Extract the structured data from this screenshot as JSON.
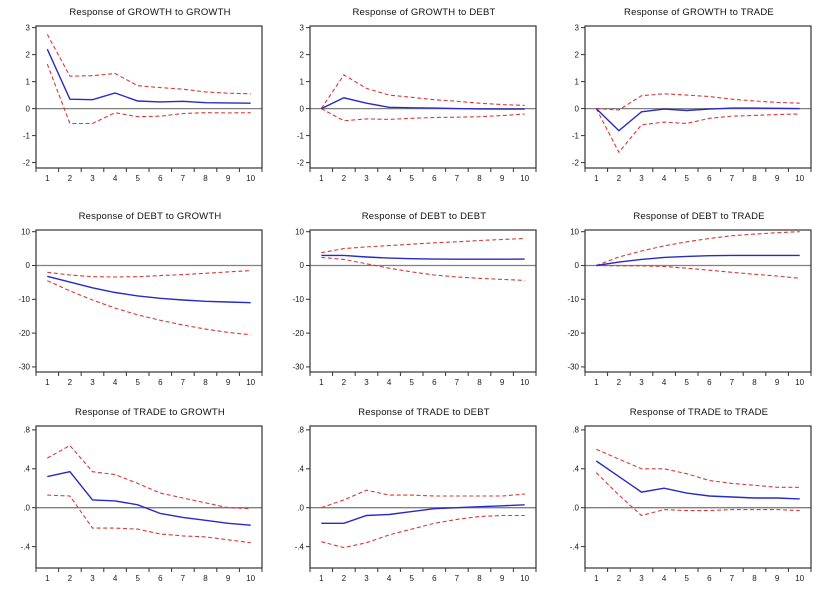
{
  "colors": {
    "response_line": "#2929c8",
    "confidence_band": "#d63b3b",
    "zero_line": "#808080",
    "frame": "#333333",
    "tick": "#333333",
    "text": "#1a1a1a"
  },
  "x_axis": {
    "range": [
      0.5,
      10.5
    ],
    "tick_boundaries": [
      0.5,
      1.5,
      2.5,
      3.5,
      4.5,
      5.5,
      6.5,
      7.5,
      8.5,
      9.5,
      10.5
    ],
    "labels": [
      "1",
      "2",
      "3",
      "4",
      "5",
      "6",
      "7",
      "8",
      "9",
      "10"
    ]
  },
  "chart_data": [
    {
      "type": "line",
      "title": "Response of GROWTH to GROWTH",
      "x": [
        1,
        2,
        3,
        4,
        5,
        6,
        7,
        8,
        9,
        10
      ],
      "ylim": [
        -2.2,
        3.06
      ],
      "ytick_values": [
        3,
        2,
        1,
        0,
        -1,
        -2
      ],
      "ytick_labels": [
        "3",
        "2",
        "1",
        "0",
        "-1",
        "-2"
      ],
      "series": [
        {
          "name": "response",
          "style": "solid",
          "values": [
            2.2,
            0.35,
            0.33,
            0.58,
            0.28,
            0.25,
            0.27,
            0.22,
            0.21,
            0.2
          ]
        },
        {
          "name": "upper-2se",
          "style": "dashed",
          "values": [
            2.75,
            1.2,
            1.22,
            1.3,
            0.85,
            0.78,
            0.72,
            0.62,
            0.57,
            0.55
          ]
        },
        {
          "name": "lower-2se",
          "style": "dashed",
          "values": [
            1.65,
            -0.55,
            -0.55,
            -0.15,
            -0.3,
            -0.28,
            -0.18,
            -0.15,
            -0.16,
            -0.15
          ]
        }
      ]
    },
    {
      "type": "line",
      "title": "Response of GROWTH to DEBT",
      "x": [
        1,
        2,
        3,
        4,
        5,
        6,
        7,
        8,
        9,
        10
      ],
      "ylim": [
        -2.2,
        3.06
      ],
      "ytick_values": [
        3,
        2,
        1,
        0,
        -1,
        -2
      ],
      "ytick_labels": [
        "3",
        "2",
        "1",
        "0",
        "-1",
        "-2"
      ],
      "series": [
        {
          "name": "response",
          "style": "solid",
          "values": [
            0.0,
            0.4,
            0.2,
            0.05,
            0.03,
            0.02,
            0.0,
            -0.01,
            -0.02,
            -0.02
          ]
        },
        {
          "name": "upper-2se",
          "style": "dashed",
          "values": [
            0.0,
            1.25,
            0.75,
            0.5,
            0.42,
            0.33,
            0.27,
            0.2,
            0.15,
            0.12
          ]
        },
        {
          "name": "lower-2se",
          "style": "dashed",
          "values": [
            0.0,
            -0.45,
            -0.38,
            -0.4,
            -0.36,
            -0.33,
            -0.32,
            -0.3,
            -0.26,
            -0.2
          ]
        }
      ]
    },
    {
      "type": "line",
      "title": "Response of GROWTH to TRADE",
      "x": [
        1,
        2,
        3,
        4,
        5,
        6,
        7,
        8,
        9,
        10
      ],
      "ylim": [
        -2.2,
        3.06
      ],
      "ytick_values": [
        3,
        2,
        1,
        0,
        -1,
        -2
      ],
      "ytick_labels": [
        "3",
        "2",
        "1",
        "0",
        "-1",
        "-2"
      ],
      "series": [
        {
          "name": "response",
          "style": "solid",
          "values": [
            0.0,
            -0.82,
            -0.12,
            -0.02,
            -0.07,
            -0.02,
            0.02,
            0.02,
            0.01,
            0.0
          ]
        },
        {
          "name": "upper-2se",
          "style": "dashed",
          "values": [
            0.0,
            -0.05,
            0.48,
            0.55,
            0.5,
            0.45,
            0.35,
            0.28,
            0.23,
            0.2
          ]
        },
        {
          "name": "lower-2se",
          "style": "dashed",
          "values": [
            0.0,
            -1.62,
            -0.6,
            -0.5,
            -0.55,
            -0.36,
            -0.28,
            -0.25,
            -0.22,
            -0.2
          ]
        }
      ]
    },
    {
      "type": "line",
      "title": "Response of DEBT to GROWTH",
      "x": [
        1,
        2,
        3,
        4,
        5,
        6,
        7,
        8,
        9,
        10
      ],
      "ylim": [
        -31.5,
        10.5
      ],
      "ytick_values": [
        10,
        0,
        -10,
        -20,
        -30
      ],
      "ytick_labels": [
        "10",
        "0",
        "-10",
        "-20",
        "-30"
      ],
      "series": [
        {
          "name": "response",
          "style": "solid",
          "values": [
            -3.2,
            -4.9,
            -6.6,
            -8.0,
            -9.0,
            -9.7,
            -10.2,
            -10.6,
            -10.8,
            -11.0
          ]
        },
        {
          "name": "upper-2se",
          "style": "dashed",
          "values": [
            -2.0,
            -2.8,
            -3.3,
            -3.4,
            -3.3,
            -3.0,
            -2.7,
            -2.3,
            -1.9,
            -1.5
          ]
        },
        {
          "name": "lower-2se",
          "style": "dashed",
          "values": [
            -4.5,
            -7.5,
            -10.2,
            -12.6,
            -14.6,
            -16.2,
            -17.6,
            -18.8,
            -19.8,
            -20.5
          ]
        }
      ]
    },
    {
      "type": "line",
      "title": "Response of DEBT to DEBT",
      "x": [
        1,
        2,
        3,
        4,
        5,
        6,
        7,
        8,
        9,
        10
      ],
      "ylim": [
        -31.5,
        10.5
      ],
      "ytick_values": [
        10,
        0,
        -10,
        -20,
        -30
      ],
      "ytick_labels": [
        "10",
        "0",
        "-10",
        "-20",
        "-30"
      ],
      "series": [
        {
          "name": "response",
          "style": "solid",
          "values": [
            3.0,
            3.0,
            2.5,
            2.2,
            2.0,
            1.9,
            1.85,
            1.85,
            1.85,
            1.9
          ]
        },
        {
          "name": "upper-2se",
          "style": "dashed",
          "values": [
            3.8,
            5.0,
            5.5,
            5.9,
            6.3,
            6.7,
            7.0,
            7.4,
            7.7,
            8.0
          ]
        },
        {
          "name": "lower-2se",
          "style": "dashed",
          "values": [
            2.4,
            1.8,
            0.5,
            -0.8,
            -1.9,
            -2.8,
            -3.4,
            -3.8,
            -4.1,
            -4.4
          ]
        }
      ]
    },
    {
      "type": "line",
      "title": "Response of DEBT to TRADE",
      "x": [
        1,
        2,
        3,
        4,
        5,
        6,
        7,
        8,
        9,
        10
      ],
      "ylim": [
        -31.5,
        10.5
      ],
      "ytick_values": [
        10,
        0,
        -10,
        -20,
        -30
      ],
      "ytick_labels": [
        "10",
        "0",
        "-10",
        "-20",
        "-30"
      ],
      "series": [
        {
          "name": "response",
          "style": "solid",
          "values": [
            0.0,
            1.0,
            1.8,
            2.4,
            2.7,
            2.9,
            3.0,
            3.0,
            3.0,
            3.0
          ]
        },
        {
          "name": "upper-2se",
          "style": "dashed",
          "values": [
            0.0,
            2.5,
            4.3,
            5.8,
            7.0,
            8.0,
            8.8,
            9.3,
            9.7,
            10.0
          ]
        },
        {
          "name": "lower-2se",
          "style": "dashed",
          "values": [
            0.0,
            -0.1,
            -0.1,
            -0.3,
            -0.8,
            -1.4,
            -2.0,
            -2.6,
            -3.1,
            -3.8
          ]
        }
      ]
    },
    {
      "type": "line",
      "title": "Response of TRADE to GROWTH",
      "x": [
        1,
        2,
        3,
        4,
        5,
        6,
        7,
        8,
        9,
        10
      ],
      "ylim": [
        -0.62,
        0.84
      ],
      "ytick_values": [
        0.8,
        0.4,
        0.0,
        -0.4
      ],
      "ytick_labels": [
        ".8",
        ".4",
        ".0",
        "-.4"
      ],
      "series": [
        {
          "name": "response",
          "style": "solid",
          "values": [
            0.32,
            0.37,
            0.08,
            0.07,
            0.03,
            -0.06,
            -0.1,
            -0.13,
            -0.16,
            -0.18
          ]
        },
        {
          "name": "upper-2se",
          "style": "dashed",
          "values": [
            0.51,
            0.64,
            0.37,
            0.34,
            0.25,
            0.15,
            0.1,
            0.05,
            0.0,
            -0.01
          ]
        },
        {
          "name": "lower-2se",
          "style": "dashed",
          "values": [
            0.13,
            0.12,
            -0.21,
            -0.21,
            -0.22,
            -0.27,
            -0.29,
            -0.3,
            -0.33,
            -0.36
          ]
        }
      ]
    },
    {
      "type": "line",
      "title": "Response of TRADE to DEBT",
      "x": [
        1,
        2,
        3,
        4,
        5,
        6,
        7,
        8,
        9,
        10
      ],
      "ylim": [
        -0.62,
        0.84
      ],
      "ytick_values": [
        0.8,
        0.4,
        0.0,
        -0.4
      ],
      "ytick_labels": [
        ".8",
        ".4",
        ".0",
        "-.4"
      ],
      "series": [
        {
          "name": "response",
          "style": "solid",
          "values": [
            -0.16,
            -0.16,
            -0.08,
            -0.07,
            -0.04,
            -0.01,
            0.0,
            0.01,
            0.02,
            0.03
          ]
        },
        {
          "name": "upper-2se",
          "style": "dashed",
          "values": [
            0.0,
            0.08,
            0.18,
            0.13,
            0.13,
            0.12,
            0.12,
            0.12,
            0.12,
            0.14
          ]
        },
        {
          "name": "lower-2se",
          "style": "dashed",
          "values": [
            -0.35,
            -0.41,
            -0.36,
            -0.28,
            -0.22,
            -0.16,
            -0.12,
            -0.09,
            -0.08,
            -0.08
          ]
        }
      ]
    },
    {
      "type": "line",
      "title": "Response of TRADE to TRADE",
      "x": [
        1,
        2,
        3,
        4,
        5,
        6,
        7,
        8,
        9,
        10
      ],
      "ylim": [
        -0.62,
        0.84
      ],
      "ytick_values": [
        0.8,
        0.4,
        0.0,
        -0.4
      ],
      "ytick_labels": [
        ".8",
        ".4",
        ".0",
        "-.4"
      ],
      "series": [
        {
          "name": "response",
          "style": "solid",
          "values": [
            0.48,
            0.32,
            0.16,
            0.2,
            0.15,
            0.12,
            0.11,
            0.1,
            0.1,
            0.09
          ]
        },
        {
          "name": "upper-2se",
          "style": "dashed",
          "values": [
            0.6,
            0.5,
            0.4,
            0.4,
            0.35,
            0.28,
            0.25,
            0.23,
            0.21,
            0.21
          ]
        },
        {
          "name": "lower-2se",
          "style": "dashed",
          "values": [
            0.36,
            0.13,
            -0.08,
            -0.02,
            -0.03,
            -0.03,
            -0.02,
            -0.02,
            -0.02,
            -0.03
          ]
        }
      ]
    }
  ]
}
